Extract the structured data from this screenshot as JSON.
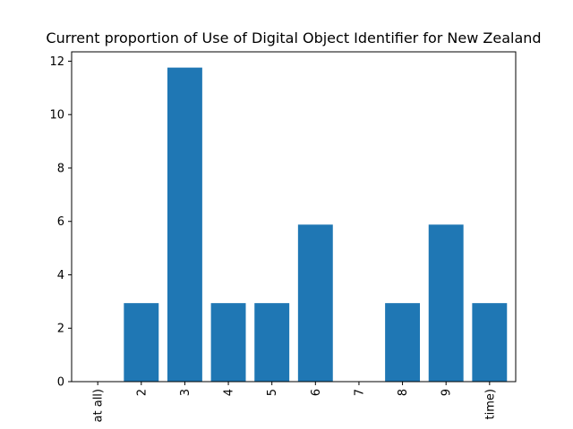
{
  "chart_data": {
    "type": "bar",
    "title": "Current proportion of Use of Digital Object Identifier for New Zealand",
    "xlabel": "",
    "ylabel": "",
    "categories": [
      "at all)",
      "2",
      "3",
      "4",
      "5",
      "6",
      "7",
      "8",
      "9",
      "time)"
    ],
    "values": [
      0,
      2.94,
      11.76,
      2.94,
      2.94,
      5.88,
      0,
      2.94,
      5.88,
      2.94
    ],
    "ylim": [
      0,
      12.35
    ],
    "yticks": [
      0,
      2,
      4,
      6,
      8,
      10,
      12
    ],
    "ytick_labels": [
      "0",
      "2",
      "4",
      "6",
      "8",
      "10",
      "12"
    ],
    "bar_color": "#1f77b4",
    "grid": false,
    "legend": "none"
  }
}
